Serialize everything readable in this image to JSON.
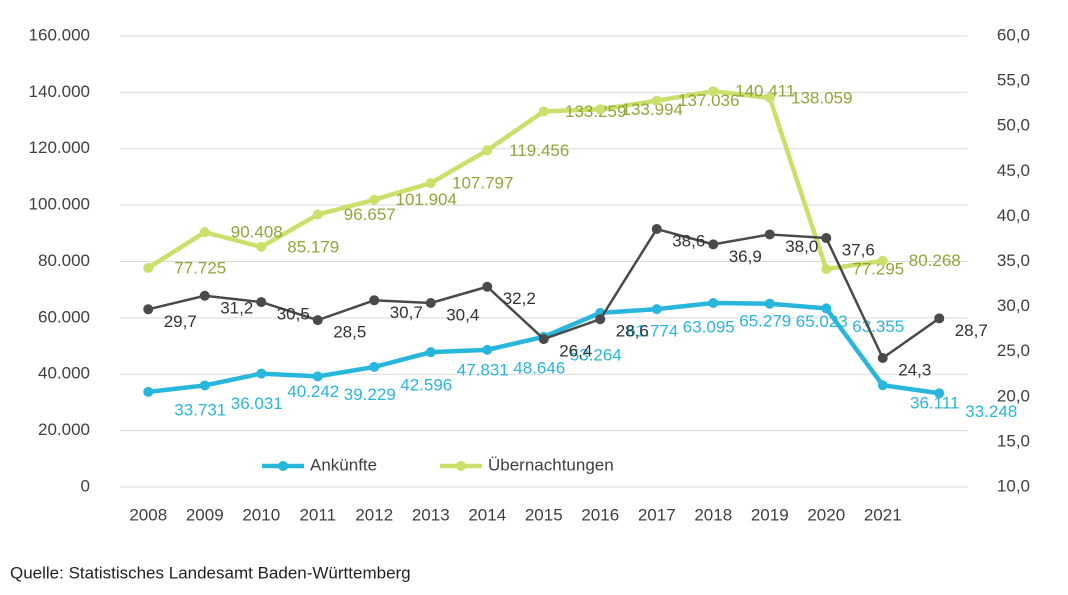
{
  "chart_data": {
    "type": "line",
    "categories": [
      "2008",
      "2009",
      "2010",
      "2011",
      "2012",
      "2013",
      "2014",
      "2015",
      "2016",
      "2017",
      "2018",
      "2019",
      "2020",
      "2021",
      null
    ],
    "series": [
      {
        "name": "Ankünfte",
        "color": "#29b6dd",
        "values": [
          33731,
          36031,
          40242,
          39229,
          42596,
          47831,
          48646,
          53264,
          61774,
          63095,
          65279,
          65023,
          63355,
          36111,
          33248
        ],
        "value_labels": [
          "33.731",
          "36.031",
          "40.242",
          "39.229",
          "42.596",
          "47.831",
          "48.646",
          "53.264",
          "61.774",
          "63.095",
          "65.279",
          "65.023",
          "63.355",
          "36.111",
          "33.248"
        ]
      },
      {
        "name": "Übernachtungen",
        "color": "#c9e06a",
        "values": [
          77725,
          90408,
          85179,
          96657,
          101904,
          107797,
          119456,
          133259,
          133994,
          137036,
          140411,
          138059,
          77295,
          80268,
          null
        ],
        "value_labels": [
          "77.725",
          "90.408",
          "85.179",
          "96.657",
          "101.904",
          "107.797",
          "119.456",
          "133.259",
          "133.994",
          "137.036",
          "140.411",
          "138.059",
          "77.295",
          "80.268",
          null
        ]
      },
      {
        "color": "#4a4a4a",
        "axis": "y2",
        "values": [
          29.7,
          31.2,
          30.5,
          28.5,
          30.7,
          30.4,
          32.2,
          26.4,
          28.6,
          38.6,
          36.9,
          38.0,
          37.6,
          24.3,
          28.7
        ],
        "value_labels": [
          "29,7",
          "31,2",
          "30,5",
          "28,5",
          "30,7",
          "30,4",
          "32,2",
          "26,4",
          "28,6",
          "38,6",
          "36,9",
          "38,0",
          "37,6",
          "24,3",
          "28,7"
        ]
      }
    ],
    "ylim": [
      0,
      160000
    ],
    "yticks": [
      {
        "value": 0,
        "label": "0"
      },
      {
        "value": 20000,
        "label": "20.000"
      },
      {
        "value": 40000,
        "label": "40.000"
      },
      {
        "value": 60000,
        "label": "60.000"
      },
      {
        "value": 80000,
        "label": "80.000"
      },
      {
        "value": 100000,
        "label": "100.000"
      },
      {
        "value": 120000,
        "label": "120.000"
      },
      {
        "value": 140000,
        "label": "140.000"
      },
      {
        "value": 160000,
        "label": "160.000"
      }
    ],
    "y2lim": [
      10,
      60
    ],
    "y2ticks": [
      {
        "value": 10,
        "label": "10,0"
      },
      {
        "value": 15,
        "label": "15,0"
      },
      {
        "value": 20,
        "label": "20,0"
      },
      {
        "value": 25,
        "label": "25,0"
      },
      {
        "value": 30,
        "label": "30,0"
      },
      {
        "value": 35,
        "label": "35,0"
      },
      {
        "value": 40,
        "label": "40,0"
      },
      {
        "value": 45,
        "label": "45,0"
      },
      {
        "value": 50,
        "label": "50,0"
      },
      {
        "value": 55,
        "label": "55,0"
      },
      {
        "value": 60,
        "label": "60,0"
      }
    ],
    "grid": true,
    "legend": "bottom",
    "source": "Quelle: Statistisches Landesamt Baden-Württemberg"
  }
}
